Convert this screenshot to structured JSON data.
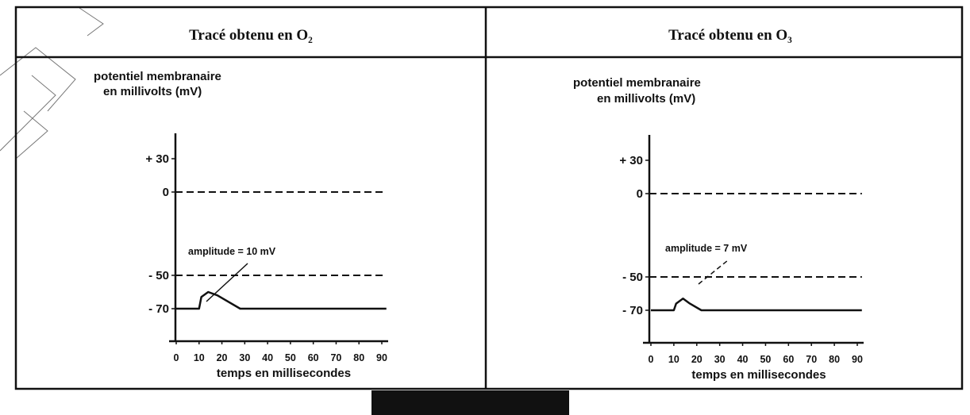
{
  "chart_data": [
    {
      "type": "line",
      "title": "Tracé obtenu en O₂",
      "ylabel_line1": "potentiel membranaire",
      "ylabel_line2": "en millivolts (mV)",
      "xlabel": "temps en millisecondes",
      "y_ticks": [
        "+ 30",
        "0",
        "- 50",
        "- 70"
      ],
      "x_ticks": [
        "0",
        "10",
        "20",
        "30",
        "40",
        "50",
        "60",
        "70",
        "80",
        "90"
      ],
      "xlim": [
        0,
        92
      ],
      "reference_lines": [
        0,
        -50
      ],
      "annotation": "amplitude = 10 mV",
      "x": [
        0,
        10,
        11,
        14,
        18,
        28,
        92
      ],
      "y": [
        -70,
        -70,
        -63,
        -60,
        -62,
        -70,
        -70
      ]
    },
    {
      "type": "line",
      "title": "Tracé obtenu en O₃",
      "ylabel_line1": "potentiel membranaire",
      "ylabel_line2": "en millivolts (mV)",
      "xlabel": "temps en millisecondes",
      "y_ticks": [
        "+ 30",
        "0",
        "- 50",
        "- 70"
      ],
      "x_ticks": [
        "0",
        "10",
        "20",
        "30",
        "40",
        "50",
        "60",
        "70",
        "80",
        "90"
      ],
      "xlim": [
        0,
        92
      ],
      "reference_lines": [
        0,
        -50
      ],
      "annotation": "amplitude = 7 mV",
      "x": [
        0,
        10,
        11,
        14,
        17,
        22,
        92
      ],
      "y": [
        -70,
        -70,
        -66,
        -63,
        -66,
        -70,
        -70
      ]
    }
  ]
}
